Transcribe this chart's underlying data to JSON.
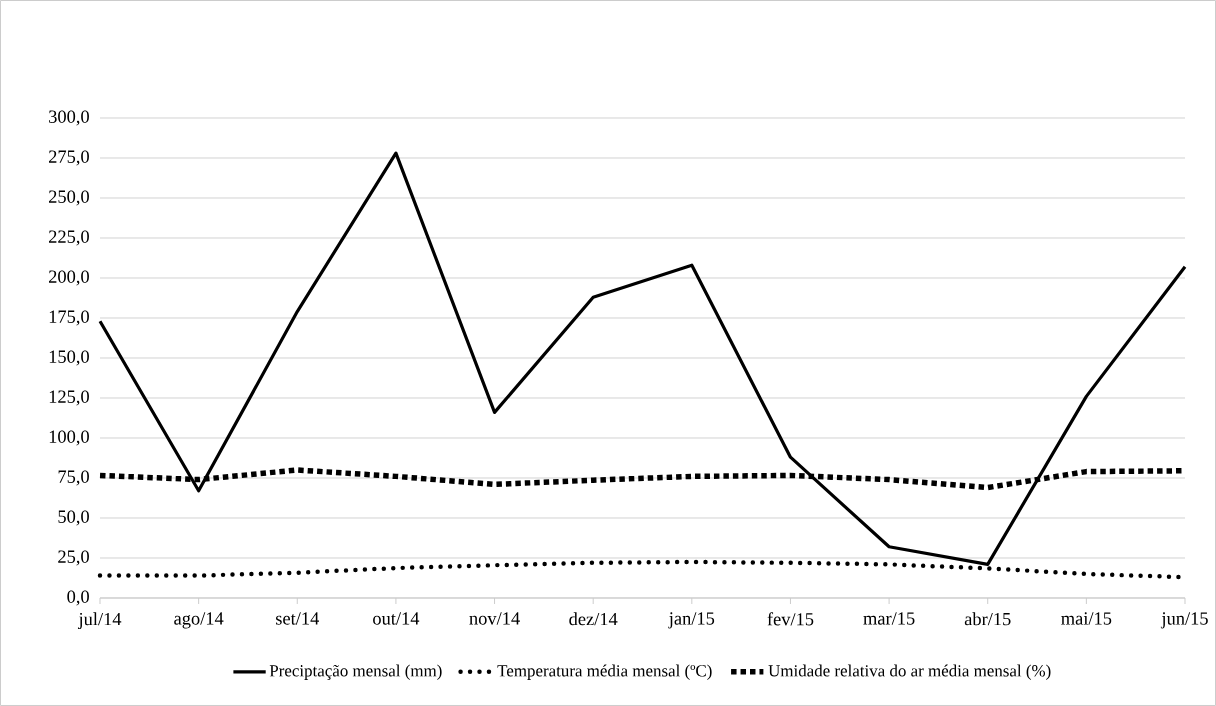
{
  "chart_data": {
    "type": "line",
    "categories": [
      "jul/14",
      "ago/14",
      "set/14",
      "out/14",
      "nov/14",
      "dez/14",
      "jan/15",
      "fev/15",
      "mar/15",
      "abr/15",
      "mai/15",
      "jun/15"
    ],
    "series": [
      {
        "name": "Preciptação mensal (mm)",
        "color": "#000000",
        "line_style": "solid",
        "values": [
          173,
          67,
          179,
          278,
          116,
          188,
          208,
          88,
          32,
          21,
          126,
          207
        ]
      },
      {
        "name": "Temperatura média mensal (ºC)",
        "color": "#000000",
        "line_style": "dotted",
        "values": [
          14,
          14,
          15.8,
          18.7,
          20.5,
          22,
          22.5,
          22,
          21,
          18.5,
          15,
          13
        ]
      },
      {
        "name": "Umidade relativa do ar média mensal (%)",
        "color": "#000000",
        "line_style": "dashed",
        "values": [
          76.6,
          74,
          80,
          76,
          71,
          73.6,
          76,
          76.6,
          74,
          69,
          79,
          79.5
        ]
      }
    ],
    "ylim": [
      0,
      300
    ],
    "yticks": [
      {
        "value": 0,
        "label": "0,0"
      },
      {
        "value": 25,
        "label": "25,0"
      },
      {
        "value": 50,
        "label": "50,0"
      },
      {
        "value": 75,
        "label": "75,0"
      },
      {
        "value": 100,
        "label": "100,0"
      },
      {
        "value": 125,
        "label": "125,0"
      },
      {
        "value": 150,
        "label": "150,0"
      },
      {
        "value": 175,
        "label": "175,0"
      },
      {
        "value": 200,
        "label": "200,0"
      },
      {
        "value": 225,
        "label": "225,0"
      },
      {
        "value": 250,
        "label": "250,0"
      },
      {
        "value": 275,
        "label": "275,0"
      },
      {
        "value": 300,
        "label": "300,0"
      }
    ],
    "grid": "y",
    "legend": "bottom",
    "marker": "none"
  }
}
